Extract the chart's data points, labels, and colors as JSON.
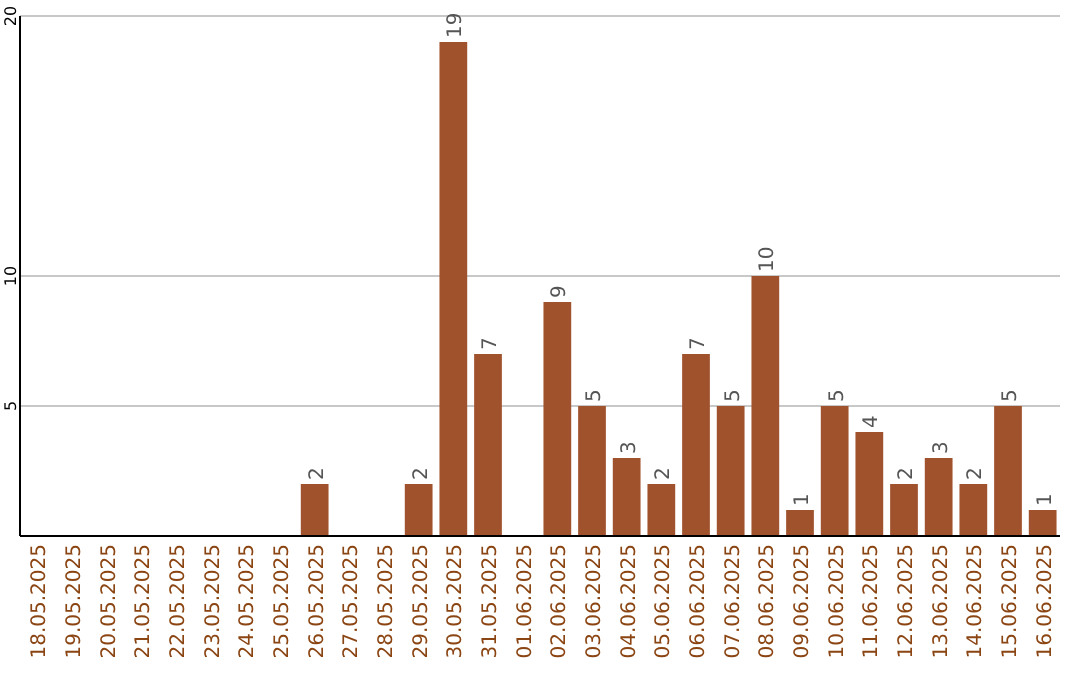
{
  "chart_data": {
    "type": "bar",
    "categories": [
      "18.05.2025",
      "19.05.2025",
      "20.05.2025",
      "21.05.2025",
      "22.05.2025",
      "23.05.2025",
      "24.05.2025",
      "25.05.2025",
      "26.05.2025",
      "27.05.2025",
      "28.05.2025",
      "29.05.2025",
      "30.05.2025",
      "31.05.2025",
      "01.06.2025",
      "02.06.2025",
      "03.06.2025",
      "04.06.2025",
      "05.06.2025",
      "06.06.2025",
      "07.06.2025",
      "08.06.2025",
      "09.06.2025",
      "10.06.2025",
      "11.06.2025",
      "12.06.2025",
      "13.06.2025",
      "14.06.2025",
      "15.06.2025",
      "16.06.2025"
    ],
    "values": [
      0,
      0,
      0,
      0,
      0,
      0,
      0,
      0,
      2,
      0,
      0,
      2,
      19,
      7,
      0,
      9,
      5,
      3,
      2,
      7,
      5,
      10,
      1,
      5,
      4,
      2,
      3,
      2,
      5,
      1
    ],
    "value_labels": [
      null,
      null,
      null,
      null,
      null,
      null,
      null,
      null,
      "2",
      null,
      null,
      "2",
      "19",
      "7",
      null,
      "9",
      "5",
      "3",
      "2",
      "7",
      "5",
      "10",
      "1",
      "5",
      "4",
      "2",
      "3",
      "2",
      "5",
      "1"
    ],
    "color": "#a0522d",
    "ylim": [
      0,
      20
    ],
    "yticks": [
      5,
      10,
      20
    ],
    "grid": "y"
  }
}
